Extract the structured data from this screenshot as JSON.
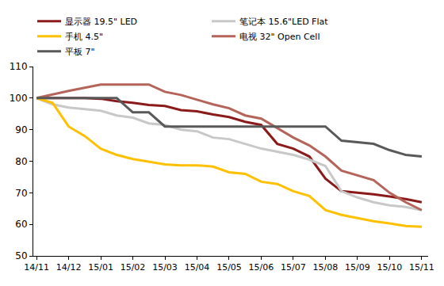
{
  "chart_data": {
    "type": "line",
    "categories": [
      "14/11",
      null,
      "14/12",
      null,
      "15/01",
      null,
      "15/02",
      null,
      "15/03",
      null,
      "15/04",
      null,
      "15/05",
      null,
      "15/06",
      null,
      "15/07",
      null,
      "15/08",
      null,
      "15/09",
      null,
      "15/10",
      null,
      "15/11"
    ],
    "series": [
      {
        "name": "显示器 19.5\" LED",
        "color": "#8B1A1A",
        "values": [
          100,
          100,
          100,
          100,
          99.8,
          99,
          98.5,
          97.8,
          97.5,
          96.2,
          95.8,
          94.8,
          94,
          92.5,
          91.5,
          85.5,
          84,
          81.5,
          74.5,
          70.5,
          70,
          69.5,
          68.8,
          68,
          67
        ]
      },
      {
        "name": "笔记本 15.6\"LED Flat",
        "color": "#C8C8C8",
        "values": [
          100,
          98,
          97,
          96.5,
          96,
          94.5,
          93.8,
          92,
          91.5,
          90,
          89.5,
          87.5,
          87,
          85.5,
          84,
          83,
          82,
          80.5,
          78.5,
          70.5,
          68.5,
          67,
          66,
          65.5,
          64.5
        ]
      },
      {
        "name": "手机 4.5\"",
        "color": "#FFC000",
        "values": [
          100,
          98.5,
          91,
          88,
          84,
          82,
          80.7,
          79.8,
          79,
          78.7,
          78.7,
          78.3,
          76.5,
          76,
          73.5,
          72.8,
          70.5,
          69,
          64.5,
          63,
          62,
          61,
          60.3,
          59.5,
          59.2
        ]
      },
      {
        "name": "电视 32\" Open Cell",
        "color": "#B5645A",
        "values": [
          100,
          101.2,
          102.3,
          103.3,
          104.3,
          104.3,
          104.3,
          104.3,
          102,
          101,
          99.5,
          98,
          96.8,
          94.5,
          93.5,
          90.5,
          87.5,
          85,
          81.5,
          77,
          75.5,
          74,
          70,
          67,
          64.5
        ]
      },
      {
        "name": "平板 7\"",
        "color": "#595959",
        "values": [
          100,
          100,
          100,
          100,
          100,
          100,
          95.5,
          95.5,
          91,
          91,
          91,
          91,
          91,
          91,
          91,
          91,
          91,
          91,
          91,
          86.5,
          86,
          85.5,
          83.5,
          82,
          81.5
        ]
      }
    ],
    "ylim": [
      50,
      110
    ],
    "yticks": [
      50,
      60,
      70,
      80,
      90,
      100,
      110
    ],
    "grid": false,
    "legend": "top"
  }
}
